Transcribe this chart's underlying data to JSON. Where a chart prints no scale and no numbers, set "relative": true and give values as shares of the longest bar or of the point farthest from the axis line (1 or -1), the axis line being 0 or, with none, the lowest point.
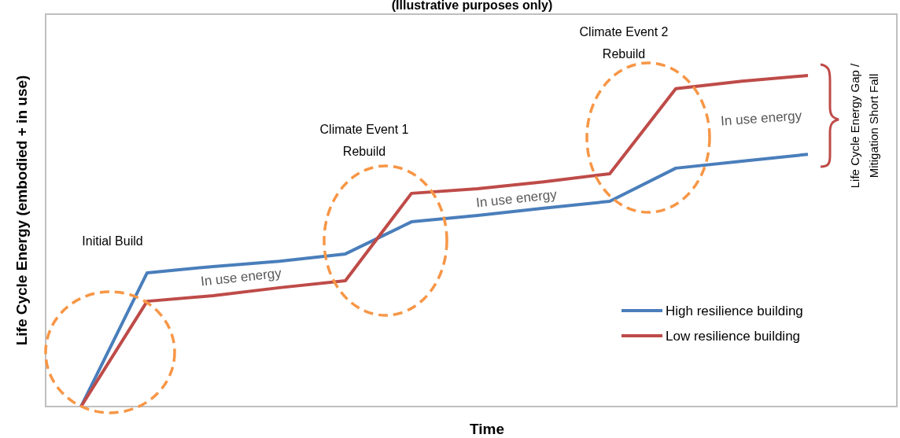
{
  "chart_data": {
    "type": "line",
    "title": "(Illustrative purposes only)",
    "xlabel": "Time",
    "ylabel": "Life Cycle Energy (embodied + in use)",
    "relative": true,
    "categories": [
      null,
      null,
      null,
      null,
      null,
      null,
      null,
      null,
      null,
      null,
      null,
      null
    ],
    "series": [
      {
        "name": "High resilience building",
        "color": "#4a7ebb",
        "values": [
          0,
          0.404,
          0.423,
          0.439,
          0.461,
          0.558,
          0.577,
          0.599,
          0.62,
          0.72,
          0.741,
          0.762
        ]
      },
      {
        "name": "Low resilience building",
        "color": "#be4b48",
        "values": [
          0,
          0.318,
          0.335,
          0.359,
          0.38,
          0.644,
          0.658,
          0.679,
          0.703,
          0.96,
          0.983,
          1
        ]
      }
    ],
    "annotations": [
      "Initial Build",
      "Climate Event 1\nRebuild",
      "Climate Event 2\nRebuild",
      "In use energy",
      "In use energy",
      "In use energy",
      "Life Cycle Energy Gap /\nMitigation Short Fall"
    ],
    "legend": "bottom right",
    "marker": "none",
    "line_style": "solid"
  }
}
